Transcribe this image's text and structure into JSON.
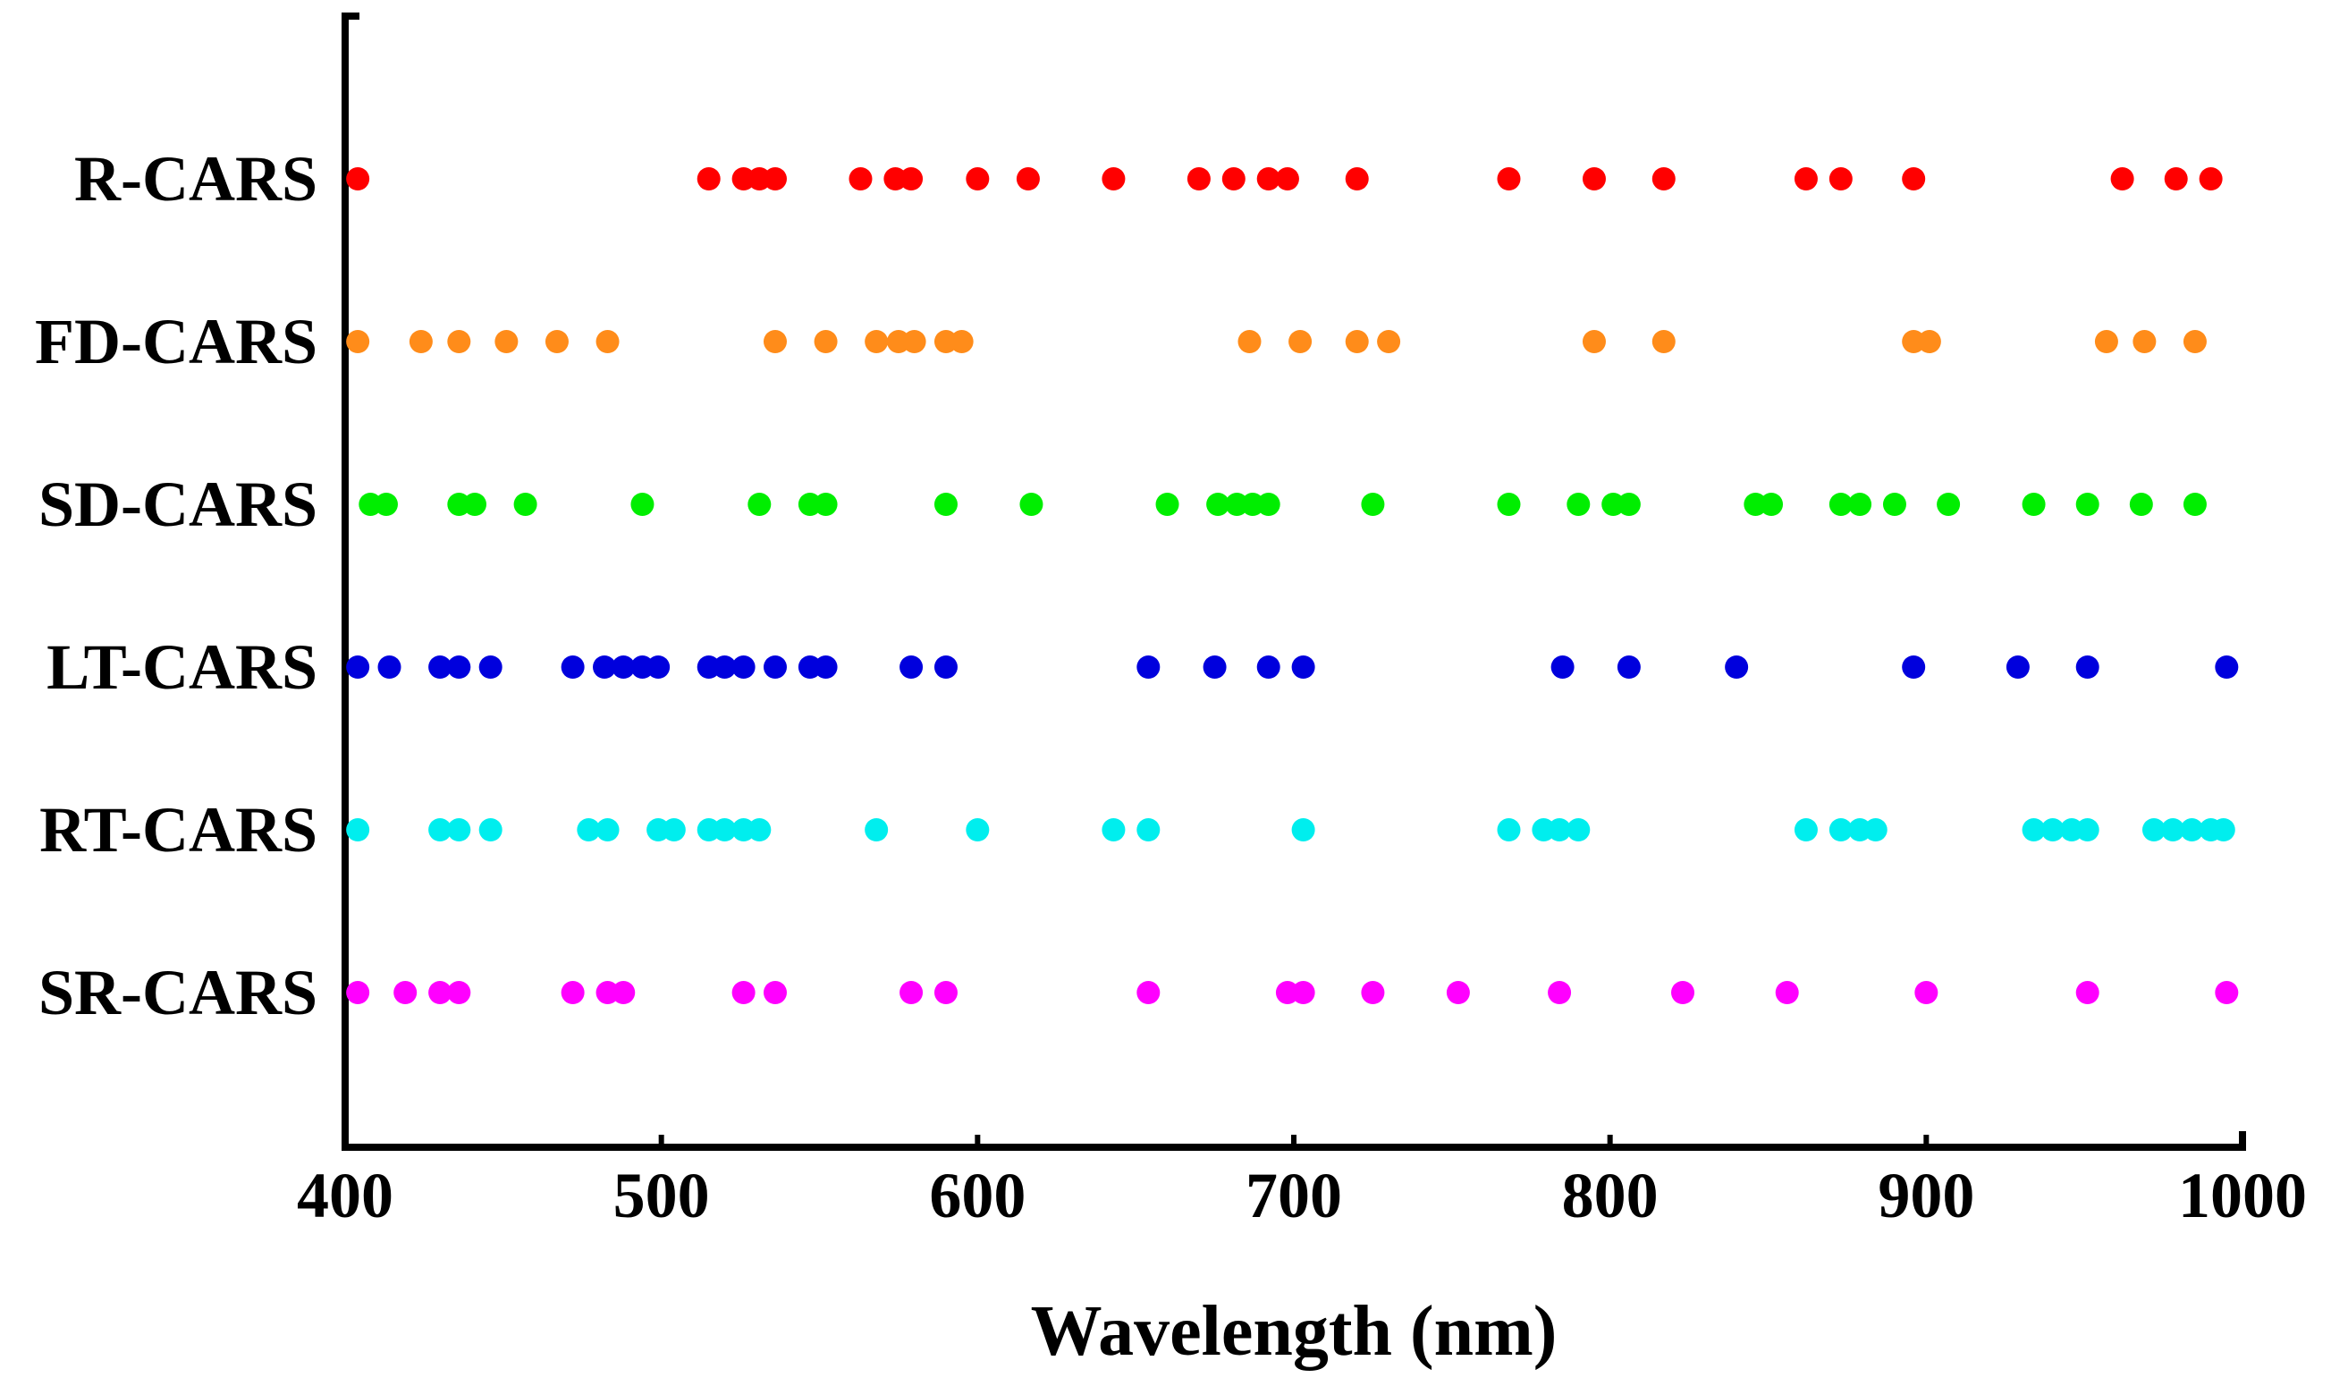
{
  "chart_data": {
    "type": "scatter",
    "title": "",
    "xlabel": "Wavelength (nm)",
    "ylabel": "",
    "xlim": [
      400,
      1000
    ],
    "x_ticks": [
      400,
      500,
      600,
      700,
      800,
      900,
      1000
    ],
    "x_tick_labels": [
      "400",
      "500",
      "600",
      "700",
      "800",
      "900",
      "1000"
    ],
    "grid": false,
    "legend": "none",
    "categories": [
      "R-CARS",
      "FD-CARS",
      "SD-CARS",
      "LT-CARS",
      "RT-CARS",
      "SR-CARS"
    ],
    "series": [
      {
        "name": "R-CARS",
        "color": "#ff0000",
        "x": [
          404,
          515,
          526,
          531,
          536,
          563,
          574,
          579,
          600,
          616,
          643,
          670,
          681,
          692,
          698,
          720,
          768,
          795,
          817,
          862,
          873,
          896,
          962,
          979,
          990
        ]
      },
      {
        "name": "FD-CARS",
        "color": "#ff8c1a",
        "x": [
          404,
          424,
          436,
          451,
          467,
          483,
          536,
          552,
          568,
          575,
          580,
          590,
          595,
          686,
          702,
          720,
          730,
          795,
          817,
          896,
          901,
          957,
          969,
          985
        ]
      },
      {
        "name": "SD-CARS",
        "color": "#00ee00",
        "x": [
          408,
          413,
          436,
          441,
          457,
          494,
          531,
          547,
          552,
          590,
          617,
          660,
          676,
          682,
          687,
          692,
          725,
          768,
          790,
          801,
          806,
          846,
          851,
          873,
          879,
          890,
          907,
          934,
          951,
          968,
          985
        ]
      },
      {
        "name": "LT-CARS",
        "color": "#0000dd",
        "x": [
          404,
          414,
          430,
          436,
          446,
          472,
          482,
          488,
          494,
          499,
          515,
          520,
          526,
          536,
          547,
          552,
          579,
          590,
          654,
          675,
          692,
          703,
          785,
          806,
          840,
          896,
          929,
          951,
          995
        ]
      },
      {
        "name": "RT-CARS",
        "color": "#00eeee",
        "x": [
          404,
          430,
          436,
          446,
          477,
          483,
          499,
          504,
          515,
          520,
          526,
          531,
          568,
          600,
          643,
          654,
          703,
          768,
          779,
          784,
          790,
          862,
          873,
          879,
          884,
          934,
          940,
          946,
          951,
          972,
          978,
          984,
          990,
          994
        ]
      },
      {
        "name": "SR-CARS",
        "color": "#ff00ff",
        "x": [
          404,
          419,
          430,
          436,
          472,
          483,
          488,
          526,
          536,
          579,
          590,
          654,
          698,
          703,
          725,
          752,
          784,
          823,
          856,
          900,
          951,
          995
        ]
      }
    ]
  }
}
